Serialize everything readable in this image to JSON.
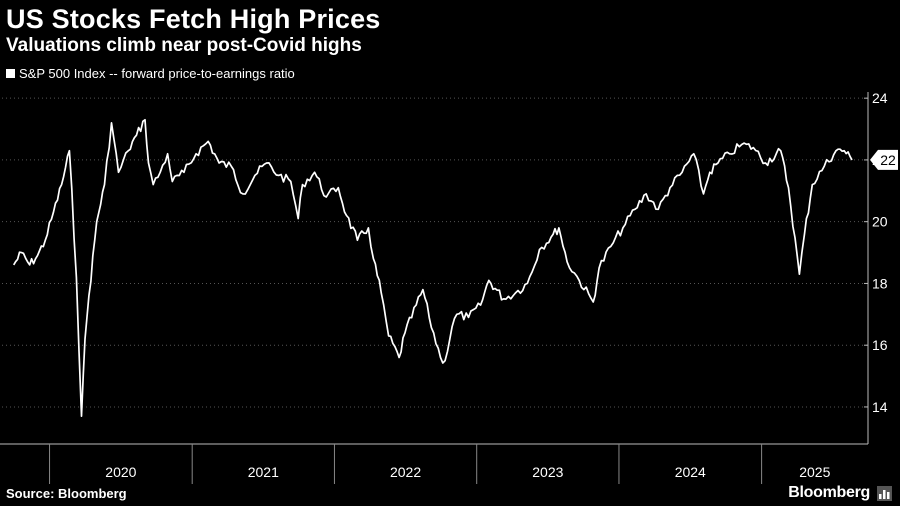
{
  "title": "US Stocks Fetch High Prices",
  "subtitle": "Valuations climb near post-Covid highs",
  "source": "Source: Bloomberg",
  "brand": "Bloomberg",
  "colors": {
    "background": "#000000",
    "line": "#ffffff",
    "grid": "#555555"
  },
  "chart_data": {
    "type": "line",
    "legend": "S&P 500 Index -- forward price-to-earnings ratio",
    "legend_position": "top-left",
    "y_axis_side": "right",
    "grid": "horizontal dotted",
    "ylim": [
      12.8,
      24.2
    ],
    "y_ticks": [
      14,
      16,
      18,
      20,
      22,
      24
    ],
    "x_year_labels": [
      "2020",
      "2021",
      "2022",
      "2023",
      "2024",
      "2025"
    ],
    "last_value_label": "22",
    "series": [
      {
        "x": [
          "2019-10-01",
          "2019-10-21",
          "2019-11-11",
          "2019-12-01",
          "2019-12-21",
          "2020-01-11",
          "2020-02-01",
          "2020-02-21",
          "2020-03-10",
          "2020-03-23",
          "2020-04-01",
          "2020-04-11",
          "2020-05-01",
          "2020-05-21",
          "2020-06-08",
          "2020-06-26",
          "2020-07-21",
          "2020-08-11",
          "2020-09-02",
          "2020-09-11",
          "2020-09-23",
          "2020-10-11",
          "2020-10-30",
          "2020-11-11",
          "2020-12-11",
          "2021-01-11",
          "2021-02-11",
          "2021-03-11",
          "2021-04-11",
          "2021-05-11",
          "2021-06-11",
          "2021-07-11",
          "2021-08-11",
          "2021-09-11",
          "2021-09-30",
          "2021-10-11",
          "2021-11-11",
          "2021-12-11",
          "2022-01-11",
          "2022-02-01",
          "2022-03-01",
          "2022-03-29",
          "2022-04-11",
          "2022-05-01",
          "2022-05-20",
          "2022-06-16",
          "2022-07-01",
          "2022-08-16",
          "2022-09-01",
          "2022-09-30",
          "2022-10-12",
          "2022-10-30",
          "2022-11-11",
          "2022-12-11",
          "2023-01-11",
          "2023-02-01",
          "2023-03-11",
          "2023-04-11",
          "2023-05-11",
          "2023-06-11",
          "2023-07-11",
          "2023-07-31",
          "2023-08-21",
          "2023-09-21",
          "2023-10-27",
          "2023-11-11",
          "2023-12-11",
          "2024-01-11",
          "2024-02-11",
          "2024-03-11",
          "2024-04-11",
          "2024-05-11",
          "2024-06-11",
          "2024-07-11",
          "2024-08-05",
          "2024-08-21",
          "2024-09-11",
          "2024-10-11",
          "2024-11-11",
          "2024-12-11",
          "2025-01-11",
          "2025-02-19",
          "2025-03-11",
          "2025-04-08",
          "2025-04-21",
          "2025-05-11",
          "2025-06-11",
          "2025-07-11",
          "2025-08-01",
          "2025-08-21"
        ],
        "values": [
          18.6,
          19.0,
          18.6,
          18.9,
          19.4,
          20.3,
          21.2,
          22.3,
          18.2,
          13.7,
          16.2,
          17.6,
          20.0,
          21.2,
          23.2,
          21.6,
          22.3,
          22.8,
          23.3,
          21.9,
          21.2,
          21.6,
          22.2,
          21.3,
          21.6,
          22.2,
          22.6,
          21.9,
          21.8,
          20.9,
          21.5,
          21.9,
          21.5,
          21.3,
          20.1,
          21.2,
          21.6,
          20.8,
          21.1,
          20.2,
          19.4,
          19.8,
          18.8,
          17.7,
          16.3,
          15.6,
          16.4,
          17.8,
          16.9,
          15.6,
          15.5,
          16.6,
          17.0,
          16.9,
          17.3,
          18.1,
          17.5,
          17.7,
          18.0,
          19.1,
          19.5,
          19.8,
          18.7,
          18.1,
          17.4,
          18.5,
          19.2,
          19.8,
          20.4,
          20.9,
          20.4,
          21.1,
          21.6,
          22.2,
          20.9,
          21.6,
          21.9,
          22.2,
          22.5,
          22.4,
          21.9,
          22.3,
          21.1,
          18.3,
          19.6,
          21.2,
          21.8,
          22.3,
          22.3,
          22.0
        ],
        "smoothed_line": true
      }
    ]
  }
}
